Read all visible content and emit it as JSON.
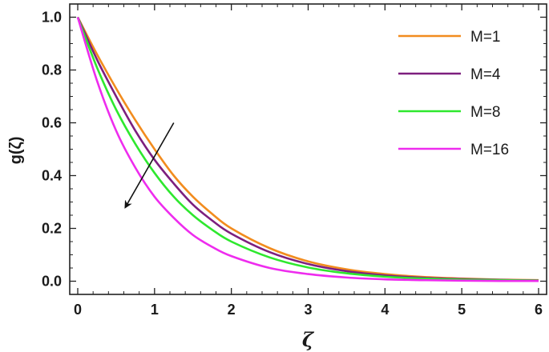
{
  "chart_data": {
    "type": "line",
    "xlabel": "ζ",
    "ylabel": "g(ζ)",
    "xlim": [
      0,
      6
    ],
    "ylim": [
      -0.05,
      1.05
    ],
    "x_ticks": [
      "0",
      "1",
      "2",
      "3",
      "4",
      "5",
      "6"
    ],
    "y_ticks": [
      "0.0",
      "0.2",
      "0.4",
      "0.6",
      "0.8",
      "1.0"
    ],
    "legend_position": "top-right",
    "grid": false,
    "annotation": {
      "type": "arrow",
      "from": [
        1.25,
        0.6
      ],
      "to": [
        0.62,
        0.28
      ]
    },
    "series": [
      {
        "name": "M=1",
        "color": "#f28c1e",
        "x": [
          0,
          0.25,
          0.5,
          0.75,
          1,
          1.25,
          1.5,
          1.75,
          2,
          2.5,
          3,
          3.5,
          4,
          4.5,
          5,
          5.5,
          6
        ],
        "y": [
          1.0,
          0.86,
          0.73,
          0.61,
          0.5,
          0.4,
          0.32,
          0.255,
          0.2,
          0.125,
          0.075,
          0.045,
          0.027,
          0.016,
          0.01,
          0.006,
          0.004
        ]
      },
      {
        "name": "M=4",
        "color": "#7d1f7e",
        "x": [
          0,
          0.25,
          0.5,
          0.75,
          1,
          1.25,
          1.5,
          1.75,
          2,
          2.5,
          3,
          3.5,
          4,
          4.5,
          5,
          5.5,
          6
        ],
        "y": [
          1.0,
          0.84,
          0.7,
          0.57,
          0.46,
          0.37,
          0.29,
          0.23,
          0.18,
          0.11,
          0.065,
          0.038,
          0.022,
          0.013,
          0.008,
          0.005,
          0.003
        ]
      },
      {
        "name": "M=8",
        "color": "#2ee82e",
        "x": [
          0,
          0.25,
          0.5,
          0.75,
          1,
          1.25,
          1.5,
          1.75,
          2,
          2.5,
          3,
          3.5,
          4,
          4.5,
          5,
          5.5,
          6
        ],
        "y": [
          1.0,
          0.81,
          0.65,
          0.52,
          0.41,
          0.32,
          0.25,
          0.195,
          0.15,
          0.09,
          0.052,
          0.03,
          0.017,
          0.01,
          0.006,
          0.004,
          0.002
        ]
      },
      {
        "name": "M=16",
        "color": "#ee2cee",
        "x": [
          0,
          0.25,
          0.5,
          0.75,
          1,
          1.25,
          1.5,
          1.75,
          2,
          2.5,
          3,
          3.5,
          4,
          4.5,
          5,
          5.5,
          6
        ],
        "y": [
          1.0,
          0.76,
          0.57,
          0.43,
          0.32,
          0.24,
          0.175,
          0.13,
          0.095,
          0.05,
          0.027,
          0.014,
          0.007,
          0.004,
          0.002,
          0.001,
          0.001
        ]
      }
    ]
  }
}
